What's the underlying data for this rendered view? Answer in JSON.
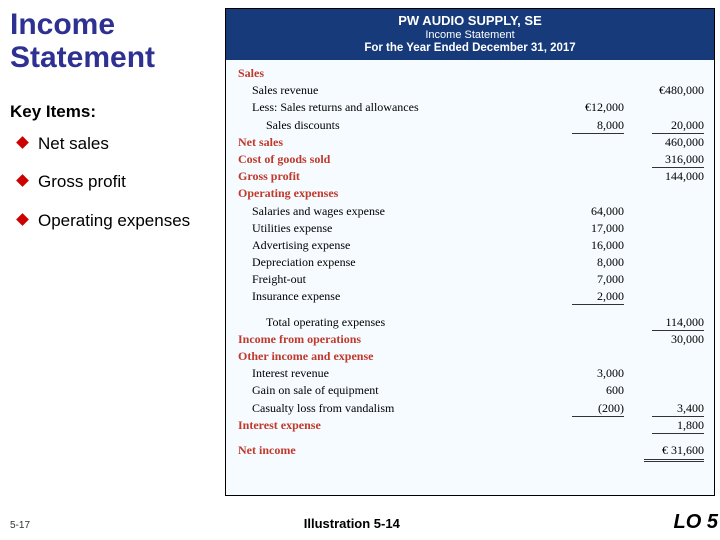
{
  "title_line1": "Income",
  "title_line2": "Statement",
  "subhead": "Key Items:",
  "bullets": [
    "Net sales",
    "Gross profit",
    "Operating expenses"
  ],
  "company": "PW AUDIO SUPPLY, SE",
  "report": "Income Statement",
  "period": "For the Year Ended December 31, 2017",
  "rows": [
    {
      "lbl": "Sales",
      "cls": "section",
      "c1": "",
      "c2": ""
    },
    {
      "lbl": "Sales revenue",
      "cls": "ind1",
      "c1": "",
      "c2": "€480,000"
    },
    {
      "lbl": "Less: Sales returns and allowances",
      "cls": "ind1",
      "c1": "€12,000",
      "c2": ""
    },
    {
      "lbl": "Sales discounts",
      "cls": "ind2",
      "c1": "8,000",
      "c1ul": true,
      "c2": "20,000",
      "c2ul": true
    },
    {
      "lbl": "Net sales",
      "cls": "section",
      "c1": "",
      "c2": "460,000"
    },
    {
      "lbl": "Cost of goods sold",
      "cls": "section",
      "c1": "",
      "c2": "316,000",
      "c2ul": true
    },
    {
      "lbl": "Gross profit",
      "cls": "section",
      "c1": "",
      "c2": "144,000"
    },
    {
      "lbl": "Operating expenses",
      "cls": "section",
      "c1": "",
      "c2": ""
    },
    {
      "lbl": "Salaries and wages expense",
      "cls": "ind1",
      "c1": "64,000",
      "c2": ""
    },
    {
      "lbl": "Utilities expense",
      "cls": "ind1",
      "c1": "17,000",
      "c2": ""
    },
    {
      "lbl": "Advertising expense",
      "cls": "ind1",
      "c1": "16,000",
      "c2": ""
    },
    {
      "lbl": "Depreciation expense",
      "cls": "ind1",
      "c1": "8,000",
      "c2": ""
    },
    {
      "lbl": "Freight-out",
      "cls": "ind1",
      "c1": "7,000",
      "c2": ""
    },
    {
      "lbl": "Insurance expense",
      "cls": "ind1",
      "c1": "2,000",
      "c1ul": true,
      "c2": ""
    },
    {
      "lbl": "",
      "cls": "",
      "c1": "",
      "c2": "",
      "spacer": true
    },
    {
      "lbl": "Total operating expenses",
      "cls": "ind2",
      "c1": "",
      "c2": "114,000",
      "c2ul": true
    },
    {
      "lbl": "Income from operations",
      "cls": "section",
      "c1": "",
      "c2": "30,000"
    },
    {
      "lbl": "Other income and expense",
      "cls": "section",
      "c1": "",
      "c2": ""
    },
    {
      "lbl": "Interest revenue",
      "cls": "ind1",
      "c1": "3,000",
      "c2": ""
    },
    {
      "lbl": "Gain on sale of equipment",
      "cls": "ind1",
      "c1": "600",
      "c2": ""
    },
    {
      "lbl": "Casualty loss from vandalism",
      "cls": "ind1",
      "c1": "(200)",
      "c1ul": true,
      "c2": "3,400",
      "c2ul": true
    },
    {
      "lbl": "Interest expense",
      "cls": "section",
      "c1": "",
      "c2": "1,800",
      "c2ul": true
    },
    {
      "lbl": "",
      "cls": "",
      "c1": "",
      "c2": "",
      "spacer": true
    },
    {
      "lbl": "Net income",
      "cls": "section",
      "c1": "",
      "c2": "€  31,600",
      "c2dul": true
    }
  ],
  "slide_no": "5-17",
  "illustration": "Illustration 5-14",
  "lo": "LO 5"
}
